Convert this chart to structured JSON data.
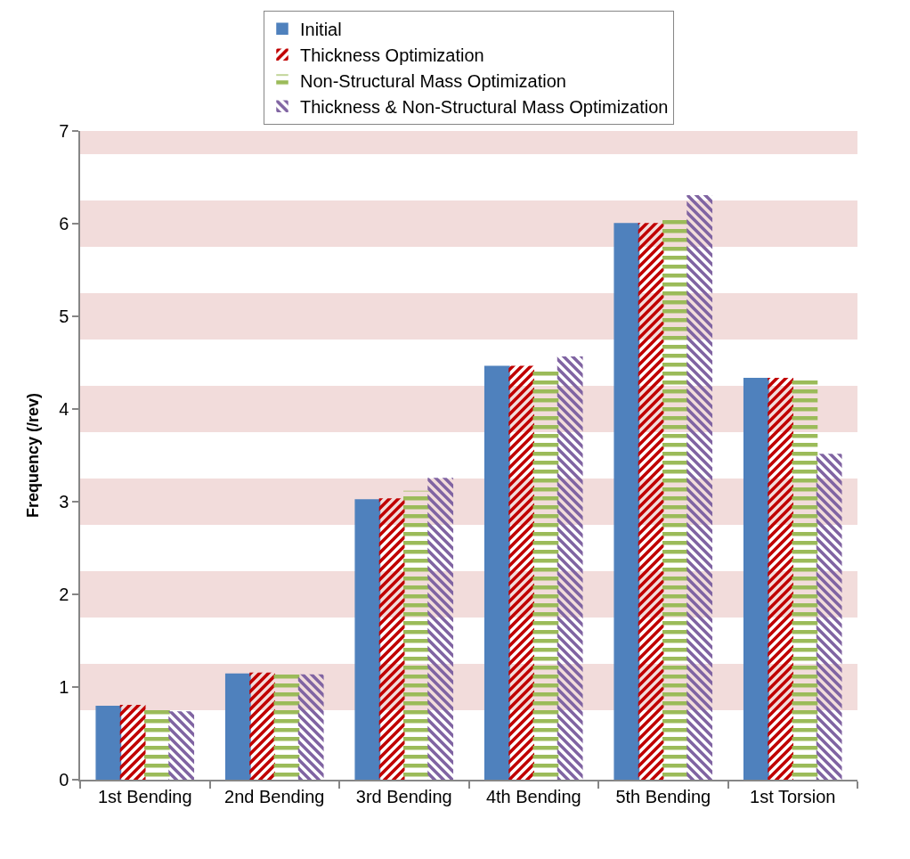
{
  "chart_data": {
    "type": "bar",
    "ylabel": "Frequency (/rev)",
    "categories": [
      "1st Bending",
      "2nd Bending",
      "3rd Bending",
      "4th Bending",
      "5th Bending",
      "1st Torsion"
    ],
    "series": [
      {
        "name": "Initial",
        "color": "#4f81bd",
        "values": [
          0.79,
          1.14,
          3.02,
          4.46,
          6.0,
          4.33
        ]
      },
      {
        "name": "Thickness Optimization",
        "color": "#c00000",
        "values": [
          0.8,
          1.15,
          3.03,
          4.46,
          6.0,
          4.33
        ]
      },
      {
        "name": "Non-Structural Mass Optimization",
        "color": "#9bbb59",
        "values": [
          0.75,
          1.13,
          3.11,
          4.43,
          6.04,
          4.33
        ]
      },
      {
        "name": "Thickness & Non-Structural Mass Optimization",
        "color": "#8064a2",
        "values": [
          0.73,
          1.13,
          3.25,
          4.56,
          6.3,
          3.51
        ]
      }
    ],
    "ylim": [
      0,
      7
    ],
    "yticks": [
      0,
      1,
      2,
      3,
      4,
      5,
      6,
      7
    ],
    "grid": false,
    "legend": "top",
    "bands": [
      {
        "axis": "y",
        "from": 0.75,
        "to": 1.25,
        "color": "#f2dcdb"
      },
      {
        "axis": "y",
        "from": 1.75,
        "to": 2.25,
        "color": "#f2dcdb"
      },
      {
        "axis": "y",
        "from": 2.75,
        "to": 3.25,
        "color": "#f2dcdb"
      },
      {
        "axis": "y",
        "from": 3.75,
        "to": 4.25,
        "color": "#f2dcdb"
      },
      {
        "axis": "y",
        "from": 4.75,
        "to": 5.25,
        "color": "#f2dcdb"
      },
      {
        "axis": "y",
        "from": 5.75,
        "to": 6.25,
        "color": "#f2dcdb"
      },
      {
        "axis": "y",
        "from": 6.75,
        "to": 7,
        "color": "#f2dcdb"
      }
    ]
  }
}
